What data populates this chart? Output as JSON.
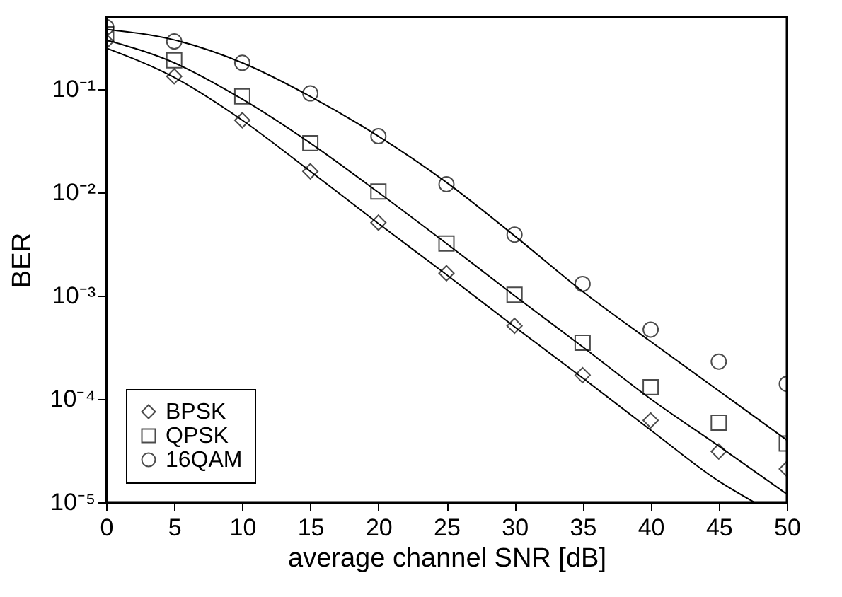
{
  "chart_data": {
    "type": "scatter",
    "xlabel": "average channel SNR [dB]",
    "ylabel": "BER",
    "log": "y",
    "grid": false,
    "legend": "bottom left",
    "xlim": [
      0,
      50
    ],
    "xticks": [
      0,
      5,
      10,
      15,
      20,
      25,
      30,
      35,
      40,
      45,
      50
    ],
    "ylim": [
      1e-05,
      0.5
    ],
    "yticks": [
      {
        "value": 1e-05,
        "label": "10⁻⁵"
      },
      {
        "value": 0.0001,
        "label": "10⁻⁴"
      },
      {
        "value": 0.001,
        "label": "10⁻³"
      },
      {
        "value": 0.01,
        "label": "10⁻²"
      },
      {
        "value": 0.1,
        "label": "10⁻¹"
      }
    ],
    "series": [
      {
        "name": "BPSK",
        "marker": "diamond",
        "color": "#000000",
        "x": [
          0,
          5,
          10,
          15,
          20,
          25,
          30,
          35,
          40,
          45,
          50
        ],
        "values": [
          0.29,
          0.133,
          0.05,
          0.016,
          0.0051,
          0.00165,
          0.00051,
          0.00017,
          6.2e-05,
          3.1e-05,
          2.1e-05
        ]
      },
      {
        "name": "QPSK",
        "marker": "square",
        "color": "#000000",
        "x": [
          0,
          5,
          10,
          15,
          20,
          25,
          30,
          35,
          40,
          45,
          50
        ],
        "values": [
          0.34,
          0.19,
          0.085,
          0.03,
          0.0102,
          0.0032,
          0.00102,
          0.00035,
          0.00013,
          5.9e-05,
          3.7e-05
        ]
      },
      {
        "name": "16QAM",
        "marker": "circle",
        "color": "#000000",
        "x": [
          0,
          5,
          10,
          15,
          20,
          25,
          30,
          35,
          40,
          45,
          50
        ],
        "values": [
          0.4,
          0.29,
          0.18,
          0.091,
          0.035,
          0.012,
          0.0039,
          0.0013,
          0.00047,
          0.00023,
          0.00014
        ]
      },
      {
        "type": "line",
        "color": "#000000",
        "x": [
          0,
          5,
          10,
          15,
          20,
          25,
          30,
          35,
          40,
          45,
          47.6
        ],
        "values": [
          0.25,
          0.13,
          0.05,
          0.016,
          0.005,
          0.0016,
          0.0005,
          0.00016,
          5e-05,
          1.6e-05,
          1e-05
        ]
      },
      {
        "type": "line",
        "color": "#000000",
        "x": [
          0,
          5,
          10,
          15,
          20,
          25,
          30,
          35,
          40,
          45,
          50
        ],
        "values": [
          0.3,
          0.18,
          0.08,
          0.03,
          0.01,
          0.0032,
          0.001,
          0.00032,
          0.0001,
          3.5e-05,
          1.2e-05
        ]
      },
      {
        "type": "line",
        "color": "#000000",
        "x": [
          0,
          5,
          10,
          15,
          20,
          25,
          30,
          35,
          40,
          45,
          50
        ],
        "values": [
          0.38,
          0.3,
          0.18,
          0.085,
          0.035,
          0.0125,
          0.0038,
          0.0011,
          0.00036,
          0.00012,
          4e-05
        ]
      }
    ]
  }
}
